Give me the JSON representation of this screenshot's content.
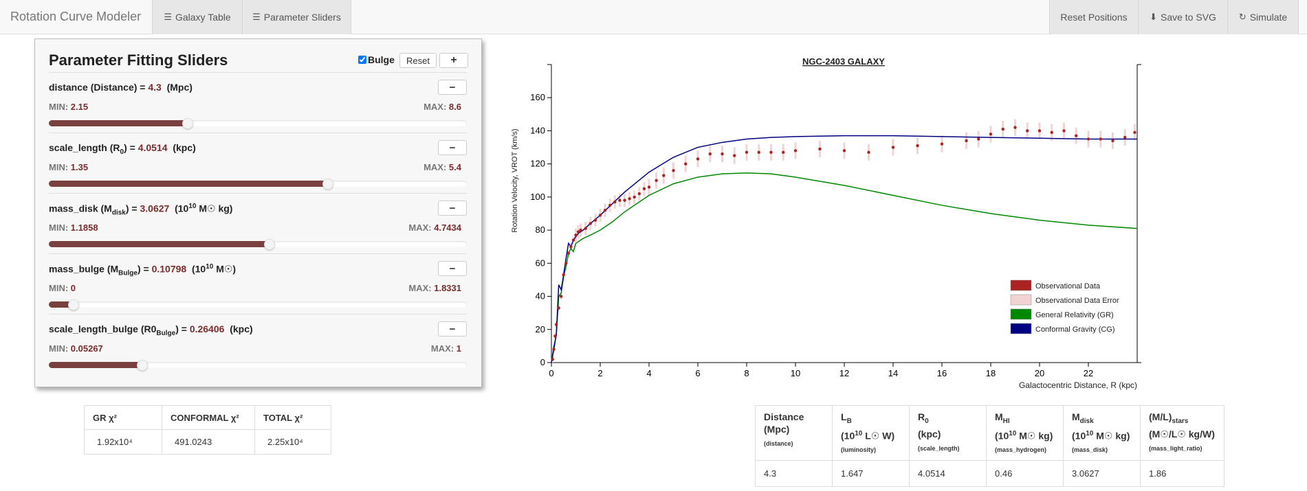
{
  "navbar": {
    "brand": "Rotation Curve Modeler",
    "galaxy_table": "Galaxy Table",
    "parameter_sliders": "Parameter Sliders",
    "reset_positions": "Reset Positions",
    "save_svg": "Save to SVG",
    "simulate": "Simulate",
    "icons": {
      "table": "list-icon",
      "sliders": "sliders-icon",
      "save": "download-icon",
      "simulate": "refresh-icon"
    }
  },
  "panel": {
    "title": "Parameter Fitting Sliders",
    "bulge_label": "Bulge",
    "bulge_checked": true,
    "reset_label": "Reset",
    "add_label": "+",
    "remove_label": "−",
    "min_label": "MIN:",
    "max_label": "MAX:",
    "sliders": [
      {
        "name": "distance",
        "symbol": "Distance",
        "sub": "",
        "value": "4.3",
        "unit": "(Mpc)",
        "min": "2.15",
        "max": "8.6",
        "fraction": 0.333
      },
      {
        "name": "scale_length",
        "symbol": "R",
        "sub": "0",
        "value": "4.0514",
        "unit": "(kpc)",
        "min": "1.35",
        "max": "5.4",
        "fraction": 0.667
      },
      {
        "name": "mass_disk",
        "symbol": "M",
        "sub": "disk",
        "value": "3.0627",
        "unit_pre": "(10",
        "unit_sup": "10",
        "unit_post": " M☉ kg)",
        "min": "1.1858",
        "max": "4.7434",
        "fraction": 0.528
      },
      {
        "name": "mass_bulge",
        "symbol": "M",
        "sub": "Bulge",
        "value": "0.10798",
        "unit_pre": "(10",
        "unit_sup": "10",
        "unit_post": " M☉)",
        "min": "0",
        "max": "1.8331",
        "fraction": 0.059
      },
      {
        "name": "scale_length_bulge",
        "symbol": "R0",
        "sub": "Bulge",
        "value": "0.26406",
        "unit": "(kpc)",
        "min": "0.05267",
        "max": "1",
        "fraction": 0.223
      }
    ]
  },
  "chi_table": {
    "headers": [
      "GR χ²",
      "CONFORMAL χ²",
      "TOTAL χ²"
    ],
    "values": [
      "1.92x10⁴",
      "491.0243",
      "2.25x10⁴"
    ]
  },
  "params_table": {
    "headers": [
      {
        "l1": "Distance",
        "l2": "(Mpc)",
        "sm": "(distance)"
      },
      {
        "l1": "L",
        "sub": "B",
        "l2": "(10",
        "sup": "10",
        "l2b": " L☉ W)",
        "sm": "(luminosity)"
      },
      {
        "l1": "R",
        "sub": "0",
        "l2": "(kpc)",
        "sm": "(scale_length)"
      },
      {
        "l1": "M",
        "sub": "HI",
        "l2": "(10",
        "sup": "10",
        "l2b": " M☉ kg)",
        "sm": "(mass_hydrogen)"
      },
      {
        "l1": "M",
        "sub": "disk",
        "l2": "(10",
        "sup": "10",
        "l2b": " M☉ kg)",
        "sm": "(mass_disk)"
      },
      {
        "l1": "(M/L)",
        "sub": "stars",
        "l2": "(M☉/L☉ kg/W)",
        "sm": "(mass_light_ratio)"
      }
    ],
    "values": [
      "4.3",
      "1.647",
      "4.0514",
      "0.46",
      "3.0627",
      "1.86"
    ]
  },
  "chart_data": {
    "type": "line",
    "title": "NGC-2403 GALAXY",
    "xlabel": "Galactocentric Distance, R (kpc)",
    "ylabel": "Rotation Velocity, VROT (km/s)",
    "xlim": [
      0,
      24
    ],
    "ylim": [
      0,
      180
    ],
    "xticks": [
      0,
      2,
      4,
      6,
      8,
      10,
      12,
      14,
      16,
      18,
      20,
      22
    ],
    "yticks": [
      0,
      20,
      40,
      60,
      80,
      100,
      120,
      140,
      160
    ],
    "legend_position": "bottom-right",
    "legend": [
      {
        "name": "Observational Data",
        "color": "#aa2222"
      },
      {
        "name": "Observational Data Error",
        "color": "#f0d4d4"
      },
      {
        "name": "General Relativity (GR)",
        "color": "#008800"
      },
      {
        "name": "Conformal Gravity (CG)",
        "color": "#000080"
      }
    ],
    "series": [
      {
        "name": "Observational Data",
        "color": "#aa2222",
        "x": [
          0.05,
          0.1,
          0.15,
          0.2,
          0.3,
          0.4,
          0.5,
          0.6,
          0.7,
          0.8,
          0.9,
          1.0,
          1.1,
          1.2,
          1.4,
          1.6,
          1.8,
          2.0,
          2.2,
          2.4,
          2.6,
          2.8,
          3.0,
          3.2,
          3.4,
          3.6,
          3.8,
          4.0,
          4.3,
          4.6,
          5.0,
          5.5,
          6.0,
          6.5,
          7.0,
          7.5,
          8.0,
          8.5,
          9.0,
          9.5,
          10.0,
          11.0,
          12.0,
          13.0,
          14.0,
          15.0,
          16.0,
          17.0,
          17.5,
          18.0,
          18.5,
          19.0,
          19.5,
          20.0,
          20.5,
          21.0,
          21.5,
          22.0,
          22.5,
          23.0,
          23.5,
          23.9
        ],
        "values": [
          2,
          8,
          16,
          23,
          33,
          40,
          53,
          60,
          66,
          70,
          74,
          77,
          79,
          80,
          81,
          84,
          86,
          89,
          92,
          95,
          97,
          98,
          98,
          99,
          100,
          102,
          105,
          106,
          110,
          113,
          116,
          120,
          123,
          126,
          126,
          125,
          127,
          127,
          127,
          127,
          128,
          129,
          128,
          127,
          130,
          131,
          132,
          134,
          135,
          138,
          141,
          142,
          140,
          140,
          139,
          140,
          137,
          135,
          135,
          134,
          136,
          139
        ]
      },
      {
        "name": "General Relativity (GR)",
        "color": "#008800",
        "x": [
          0,
          0.1,
          0.2,
          0.3,
          0.4,
          0.5,
          0.6,
          0.7,
          0.8,
          0.9,
          1.0,
          1.1,
          1.3,
          1.6,
          2.0,
          2.5,
          3.0,
          3.5,
          4.0,
          5.0,
          6.0,
          7.0,
          8.0,
          9.0,
          10.0,
          12.0,
          14.0,
          16.0,
          18.0,
          20.0,
          22.0,
          24.0
        ],
        "values": [
          0,
          10,
          16,
          40,
          42,
          52,
          58,
          66,
          69,
          67,
          72,
          73,
          75,
          77,
          80,
          85,
          91,
          96,
          101,
          108,
          112,
          114,
          114.5,
          114,
          112,
          107,
          101,
          95,
          90,
          86,
          83,
          81
        ]
      },
      {
        "name": "Conformal Gravity (CG)",
        "color": "#000080",
        "x": [
          0,
          0.1,
          0.2,
          0.3,
          0.4,
          0.5,
          0.6,
          0.7,
          0.8,
          0.9,
          1.0,
          1.1,
          1.3,
          1.6,
          2.0,
          2.5,
          3.0,
          3.5,
          4.0,
          5.0,
          6.0,
          7.0,
          8.0,
          9.0,
          10.0,
          12.0,
          14.0,
          16.0,
          18.0,
          20.0,
          22.0,
          24.0
        ],
        "values": [
          0,
          8,
          17,
          47,
          44,
          53,
          63,
          72,
          70,
          74,
          76,
          78,
          80,
          84,
          89,
          96,
          103,
          109,
          115,
          124,
          130,
          133,
          135,
          136,
          136.5,
          137,
          137,
          136.5,
          136,
          135.5,
          135,
          135
        ]
      }
    ]
  }
}
